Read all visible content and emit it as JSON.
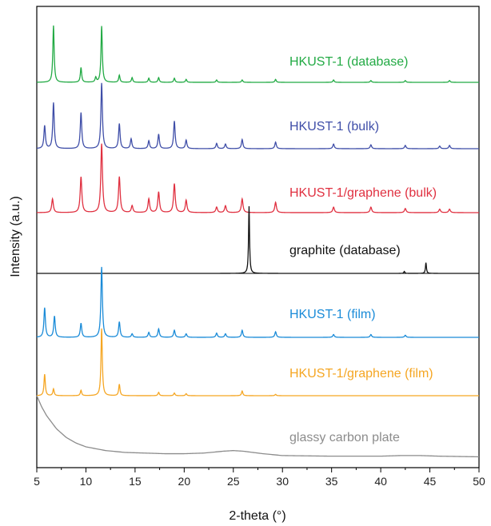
{
  "chart_data": {
    "type": "line",
    "xlabel": "2-theta (°)",
    "ylabel": "Intensity (a.u.)",
    "xlim": [
      5,
      50
    ],
    "x_ticks": [
      5,
      10,
      15,
      20,
      25,
      30,
      35,
      40,
      45,
      50
    ],
    "y_ticks": "none",
    "legend": "none",
    "grid": false,
    "series": [
      {
        "name": "HKUST-1 (database)",
        "color": "#22aa44",
        "baseline": 0.0,
        "x": [
          6.7,
          9.5,
          11.0,
          11.6,
          13.4,
          14.7,
          16.4,
          17.4,
          19.0,
          20.2,
          23.3,
          25.9,
          29.3,
          35.2,
          39.0,
          42.5,
          47.0
        ],
        "y": [
          0.96,
          0.25,
          0.08,
          0.95,
          0.12,
          0.08,
          0.07,
          0.08,
          0.07,
          0.05,
          0.04,
          0.04,
          0.05,
          0.04,
          0.03,
          0.03,
          0.03
        ]
      },
      {
        "name": "HKUST-1 (bulk)",
        "color": "#3f4ea8",
        "baseline": 0.0,
        "x": [
          5.8,
          6.7,
          9.5,
          11.6,
          13.4,
          14.6,
          16.4,
          17.4,
          19.0,
          20.2,
          23.3,
          24.2,
          25.9,
          29.3,
          35.2,
          39.0,
          42.5,
          46.0,
          47.0
        ],
        "y": [
          0.35,
          0.7,
          0.55,
          1.0,
          0.38,
          0.15,
          0.12,
          0.22,
          0.42,
          0.13,
          0.08,
          0.07,
          0.14,
          0.1,
          0.07,
          0.06,
          0.05,
          0.04,
          0.05
        ]
      },
      {
        "name": "HKUST-1/graphene (bulk)",
        "color": "#e03040",
        "baseline": 0.0,
        "x": [
          6.6,
          9.5,
          11.6,
          13.4,
          14.7,
          16.4,
          17.4,
          19.0,
          20.2,
          23.3,
          24.2,
          25.9,
          29.3,
          35.2,
          39.0,
          42.5,
          46.0,
          47.0
        ],
        "y": [
          0.2,
          0.52,
          1.0,
          0.52,
          0.1,
          0.2,
          0.3,
          0.42,
          0.18,
          0.08,
          0.1,
          0.2,
          0.15,
          0.08,
          0.08,
          0.06,
          0.05,
          0.05
        ]
      },
      {
        "name": "graphite (database)",
        "color": "#111111",
        "baseline": 0.0,
        "x": [
          26.6,
          42.4,
          44.6
        ],
        "y": [
          1.0,
          0.03,
          0.16
        ]
      },
      {
        "name": "HKUST-1 (film)",
        "color": "#1a8bd8",
        "baseline": 0.0,
        "x": [
          5.8,
          6.8,
          9.5,
          11.6,
          13.4,
          14.7,
          16.4,
          17.4,
          19.0,
          20.2,
          23.3,
          24.2,
          25.9,
          29.3,
          35.2,
          39.0,
          42.5
        ],
        "y": [
          0.42,
          0.3,
          0.2,
          1.0,
          0.22,
          0.05,
          0.07,
          0.12,
          0.1,
          0.05,
          0.06,
          0.05,
          0.1,
          0.08,
          0.04,
          0.04,
          0.03
        ]
      },
      {
        "name": "HKUST-1/graphene (film)",
        "color": "#f5a623",
        "baseline": 0.0,
        "x": [
          5.8,
          6.7,
          9.5,
          11.6,
          13.4,
          17.4,
          19.0,
          20.2,
          25.9,
          29.3
        ],
        "y": [
          0.32,
          0.1,
          0.08,
          1.0,
          0.17,
          0.05,
          0.04,
          0.03,
          0.07,
          0.02
        ]
      },
      {
        "name": "glassy carbon plate",
        "color": "#8c8c8c",
        "baseline": 0.0,
        "x": [
          5.0,
          5.5,
          6.0,
          7.0,
          8.0,
          9.0,
          10.0,
          12.0,
          14.0,
          16.0,
          18.0,
          20.0,
          22.0,
          24.0,
          25.0,
          26.0,
          28.0,
          30.0,
          35.0,
          40.0,
          42.0,
          44.0,
          46.0,
          50.0
        ],
        "y": [
          1.0,
          0.82,
          0.68,
          0.47,
          0.33,
          0.24,
          0.18,
          0.12,
          0.09,
          0.08,
          0.07,
          0.07,
          0.08,
          0.11,
          0.12,
          0.11,
          0.07,
          0.04,
          0.03,
          0.03,
          0.04,
          0.04,
          0.03,
          0.02
        ]
      }
    ]
  }
}
